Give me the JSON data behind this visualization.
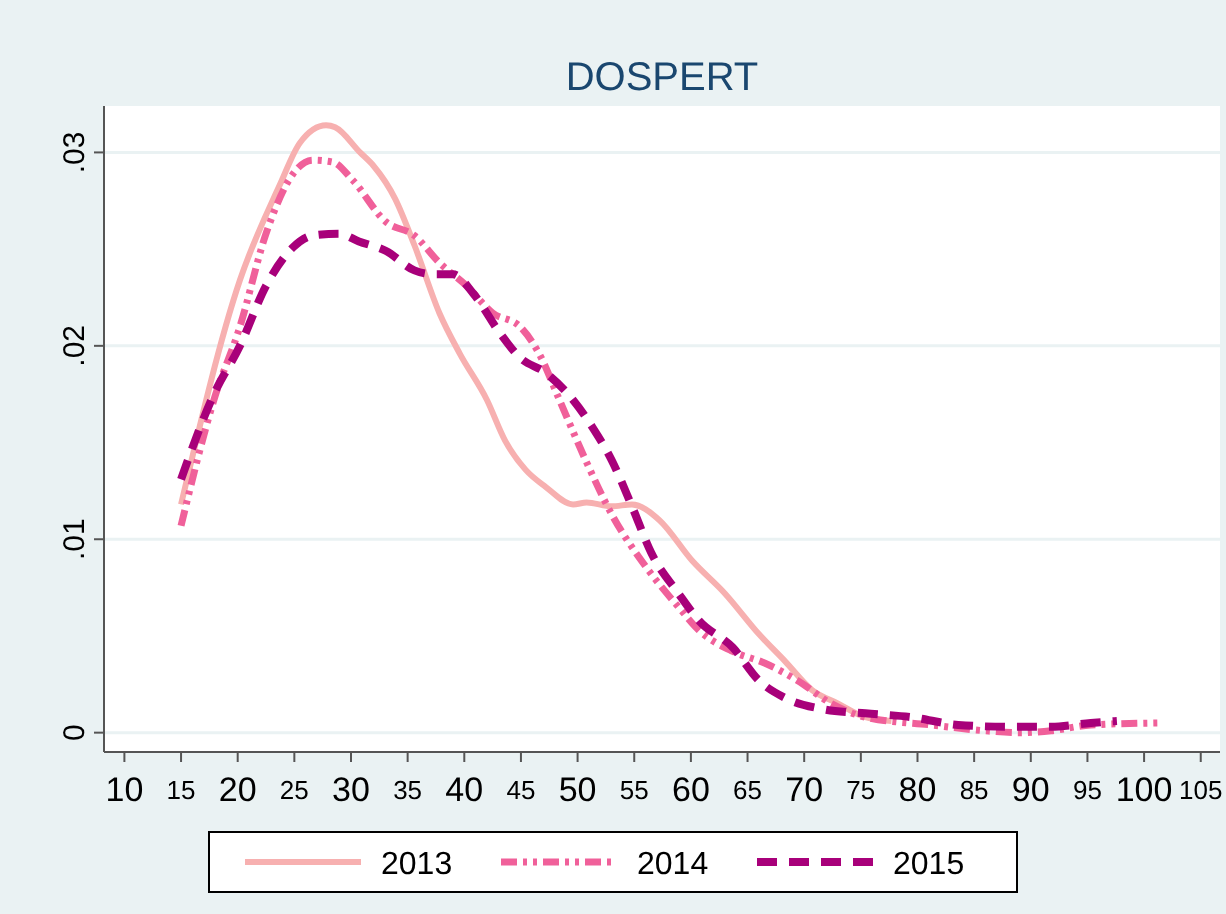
{
  "chart_data": {
    "type": "line",
    "title": "DOSPERT",
    "xlim": [
      8.2,
      106.7
    ],
    "ylim": [
      -0.001,
      0.0324
    ],
    "xticks": [
      10,
      15,
      20,
      25,
      30,
      35,
      40,
      45,
      50,
      55,
      60,
      65,
      70,
      75,
      80,
      85,
      90,
      95,
      100,
      105
    ],
    "yticks": [
      {
        "value": 0,
        "label": "0"
      },
      {
        "value": 0.01,
        "label": ".01"
      },
      {
        "value": 0.02,
        "label": ".02"
      },
      {
        "value": 0.03,
        "label": ".03"
      }
    ],
    "grid": "y",
    "legend": "bottom",
    "series": [
      {
        "name": "2013",
        "color": "#f7b0b0",
        "line_style": "solid",
        "x": [
          15,
          20.2,
          23.7,
          25.5,
          27.8,
          28.6,
          30.8,
          32,
          33.9,
          35.6,
          37.8,
          39.6,
          42,
          43.6,
          45.4,
          47.2,
          49.6,
          50.8,
          53,
          54.8,
          57.2,
          60.1,
          63,
          66,
          68.3,
          70.7,
          73,
          75.4,
          77.7
        ],
        "values": [
          0.0118,
          0.0234,
          0.0283,
          0.0305,
          0.0314,
          0.0313,
          0.03,
          0.0293,
          0.0276,
          0.0252,
          0.0217,
          0.0196,
          0.0172,
          0.0151,
          0.0136,
          0.0127,
          0.0118,
          0.0119,
          0.0117,
          0.0118,
          0.011,
          0.0089,
          0.0072,
          0.0051,
          0.0037,
          0.0022,
          0.0015,
          0.0008,
          0.0006
        ]
      },
      {
        "name": "2014",
        "color": "#f0609a",
        "line_style": "dashdot",
        "x": [
          15,
          17.9,
          20.2,
          22.5,
          24.9,
          26.6,
          28.4,
          30.1,
          33.1,
          35.6,
          37.8,
          40.2,
          42.5,
          44.9,
          46.6,
          48.4,
          50.7,
          53,
          56,
          58.9,
          60.7,
          63.7,
          66.5,
          69.4,
          72.4,
          75.4,
          81.2,
          85.9,
          88.9,
          91.8,
          95.3,
          101.2
        ],
        "values": [
          0.0107,
          0.0172,
          0.021,
          0.0258,
          0.0289,
          0.0296,
          0.0295,
          0.0286,
          0.0264,
          0.0257,
          0.0243,
          0.0231,
          0.0217,
          0.021,
          0.0196,
          0.0172,
          0.0141,
          0.0113,
          0.0086,
          0.0065,
          0.0053,
          0.0042,
          0.0036,
          0.0027,
          0.0015,
          0.0008,
          0.0004,
          0.0001,
          0,
          0.0001,
          0.0004,
          0.0005
        ]
      },
      {
        "name": "2015",
        "color": "#a8007a",
        "line_style": "dashed",
        "x": [
          15,
          17.9,
          20.2,
          22.5,
          24.9,
          26.6,
          28.9,
          30.7,
          33.1,
          35.6,
          37.3,
          39,
          40.8,
          43.1,
          44.9,
          47.2,
          49.6,
          51.3,
          53,
          54.8,
          56.5,
          58.9,
          60.7,
          63.7,
          66,
          68.3,
          71.8,
          75.4,
          79.5,
          83.6,
          88.3,
          91.8,
          95.3,
          97.6
        ],
        "values": [
          0.0131,
          0.0175,
          0.02,
          0.0231,
          0.0251,
          0.0257,
          0.0258,
          0.0254,
          0.0249,
          0.0239,
          0.0237,
          0.0237,
          0.0227,
          0.0207,
          0.0194,
          0.0186,
          0.0172,
          0.0158,
          0.0141,
          0.0117,
          0.0093,
          0.0072,
          0.0058,
          0.0044,
          0.0027,
          0.0018,
          0.0012,
          0.001,
          0.0008,
          0.0004,
          0.0003,
          0.0003,
          0.0005,
          0.0006
        ]
      }
    ]
  }
}
